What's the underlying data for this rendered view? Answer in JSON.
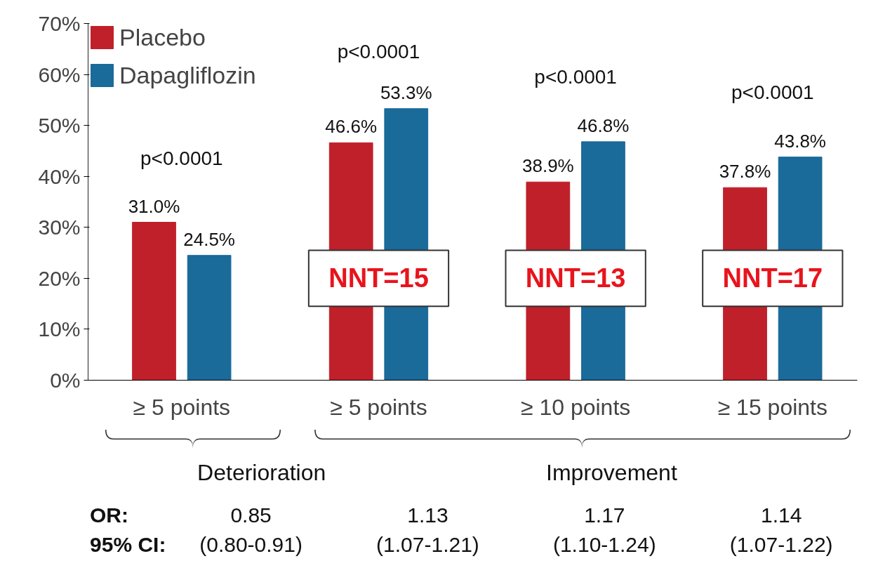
{
  "chart_data": {
    "type": "bar",
    "categories": [
      "≥ 5 points",
      "≥ 5 points",
      "≥ 10 points",
      "≥ 15 points"
    ],
    "series": [
      {
        "name": "Placebo",
        "color": "#c0202a",
        "values": [
          31.0,
          46.6,
          38.9,
          37.8
        ],
        "value_labels": [
          "31.0%",
          "46.6%",
          "38.9%",
          "37.8%"
        ]
      },
      {
        "name": "Dapagliflozin",
        "color": "#1a6a9a",
        "values": [
          24.5,
          53.3,
          46.8,
          43.8
        ],
        "value_labels": [
          "24.5%",
          "53.3%",
          "46.8%",
          "43.8%"
        ]
      }
    ],
    "ylim": [
      0,
      70
    ],
    "yticks": [
      {
        "value": 0,
        "label": "0%"
      },
      {
        "value": 10,
        "label": "10%"
      },
      {
        "value": 20,
        "label": "20%"
      },
      {
        "value": 30,
        "label": "30%"
      },
      {
        "value": 40,
        "label": "40%"
      },
      {
        "value": 50,
        "label": "50%"
      },
      {
        "value": 60,
        "label": "60%"
      },
      {
        "value": 70,
        "label": "70%"
      }
    ],
    "grid": false,
    "legend": "top left",
    "annotations": [
      "p<0.0001",
      "p<0.0001",
      "p<0.0001",
      "p<0.0001",
      "NNT=15",
      "NNT=13",
      "NNT=17",
      "Deterioration",
      "Improvement",
      "OR:",
      "0.85",
      "1.13",
      "1.17",
      "1.14",
      "95% CI:",
      "(0.80-0.91)",
      "(1.07-1.21)",
      "(1.10-1.24)",
      "(1.07-1.22)"
    ]
  }
}
